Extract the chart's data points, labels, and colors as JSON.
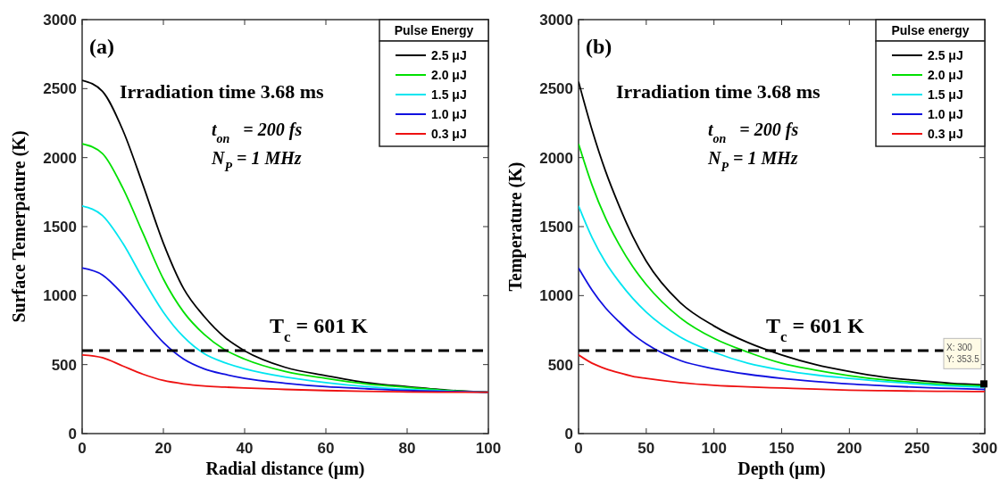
{
  "chart_data": [
    {
      "type": "line",
      "xlabel": "Radial distance (μm)",
      "ylabel": "Surface Temerpature (K)",
      "legend_title": "Pulse Energy",
      "legend": "top right",
      "grid": false,
      "line_style": "solid",
      "marker": "none",
      "xlim": [
        0,
        100
      ],
      "xticks": [
        0,
        20,
        40,
        60,
        80,
        100
      ],
      "ylim": [
        0,
        3000
      ],
      "yticks": [
        0,
        500,
        1000,
        1500,
        2000,
        2500,
        3000
      ],
      "x": [
        0,
        5,
        10,
        15,
        20,
        25,
        30,
        35,
        40,
        50,
        60,
        70,
        80,
        90,
        100
      ],
      "series": [
        {
          "name": "2.5 μJ",
          "color": "#000000",
          "values": [
            2560,
            2480,
            2200,
            1800,
            1380,
            1050,
            850,
            700,
            600,
            480,
            420,
            370,
            340,
            315,
            300
          ]
        },
        {
          "name": "2.0 μJ",
          "color": "#00e000",
          "values": [
            2100,
            2030,
            1780,
            1450,
            1120,
            880,
            720,
            610,
            540,
            450,
            400,
            360,
            335,
            312,
            300
          ]
        },
        {
          "name": "1.5 μJ",
          "color": "#00e5f0",
          "values": [
            1650,
            1580,
            1380,
            1120,
            880,
            700,
            580,
            515,
            470,
            410,
            370,
            340,
            320,
            308,
            300
          ]
        },
        {
          "name": "1.0 μJ",
          "color": "#1010e0",
          "values": [
            1200,
            1150,
            1010,
            830,
            660,
            540,
            470,
            430,
            400,
            365,
            340,
            325,
            312,
            305,
            300
          ]
        },
        {
          "name": "0.3 μJ",
          "color": "#ee1111",
          "values": [
            570,
            550,
            490,
            430,
            385,
            360,
            345,
            337,
            330,
            320,
            312,
            306,
            302,
            300,
            300
          ]
        }
      ],
      "ref_lines": [
        {
          "axis": "y",
          "value": 601,
          "label": "T$_{c}$ = 601 K",
          "color": "#000000",
          "line_style": "dashed"
        }
      ],
      "annotations": [
        "(a)",
        "Irradiation time 3.68 ms",
        "t$_{on}$   = 200 fs",
        "N$_{P}$ = 1 MHz"
      ]
    },
    {
      "type": "line",
      "xlabel": "Depth (μm)",
      "ylabel": "Temperature (K)",
      "legend_title": "Pulse energy",
      "legend": "top right",
      "grid": false,
      "line_style": "solid",
      "marker": "none",
      "xlim": [
        0,
        300
      ],
      "xticks": [
        0,
        50,
        100,
        150,
        200,
        250,
        300
      ],
      "ylim": [
        0,
        3000
      ],
      "yticks": [
        0,
        500,
        1000,
        1500,
        2000,
        2500,
        3000
      ],
      "x": [
        0,
        10,
        20,
        30,
        40,
        50,
        75,
        100,
        125,
        150,
        175,
        200,
        225,
        250,
        275,
        300
      ],
      "series": [
        {
          "name": "2.5 μJ",
          "color": "#000000",
          "values": [
            2550,
            2200,
            1900,
            1650,
            1430,
            1250,
            950,
            780,
            660,
            570,
            500,
            450,
            410,
            385,
            365,
            353.5
          ]
        },
        {
          "name": "2.0 μJ",
          "color": "#00e000",
          "values": [
            2100,
            1800,
            1560,
            1370,
            1210,
            1080,
            840,
            690,
            590,
            510,
            460,
            420,
            390,
            370,
            355,
            345
          ]
        },
        {
          "name": "1.5 μJ",
          "color": "#00e5f0",
          "values": [
            1650,
            1420,
            1240,
            1100,
            980,
            880,
            700,
            590,
            510,
            460,
            425,
            400,
            378,
            360,
            345,
            335
          ]
        },
        {
          "name": "1.0 μJ",
          "color": "#1010e0",
          "values": [
            1200,
            1040,
            910,
            810,
            720,
            650,
            530,
            470,
            430,
            400,
            378,
            360,
            347,
            335,
            327,
            320
          ]
        },
        {
          "name": "0.3 μJ",
          "color": "#ee1111",
          "values": [
            570,
            510,
            470,
            440,
            415,
            400,
            370,
            350,
            338,
            330,
            322,
            315,
            311,
            308,
            306,
            305
          ]
        }
      ],
      "ref_lines": [
        {
          "axis": "y",
          "value": 601,
          "label": "T$_{c}$ = 601 K",
          "color": "#000000",
          "line_style": "dashed"
        }
      ],
      "annotations": [
        "(b)",
        "Irradiation time 3.68 ms",
        "t$_{on}$   = 200 fs",
        "N$_{P}$ = 1 MHz",
        {
          "text": "X: 300\nY: 353.5",
          "x": 300,
          "y": 353.5
        }
      ]
    }
  ]
}
